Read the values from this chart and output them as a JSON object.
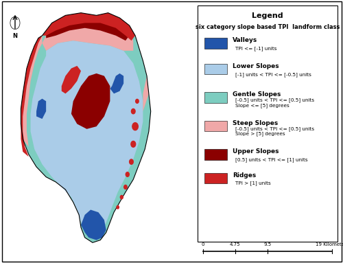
{
  "title": "Legend",
  "subtitle": "six category slope based TPI  landform class",
  "legend_items": [
    {
      "label": "Valleys",
      "sublabel": "TPI <= [-1] units",
      "color": "#2255aa"
    },
    {
      "label": "Lower Slopes",
      "sublabel": "[-1] units < TPI <= [-0.5] units",
      "color": "#aacce8"
    },
    {
      "label": "Gentle Slopes",
      "sublabel": "[-0.5] units < TPI <= [0.5] units\nSlope <= [5] degrees",
      "color": "#7dcdc0"
    },
    {
      "label": "Steep Slopes",
      "sublabel": "[-0.5] units < TPI <= [0.5] units\nSlope > [5] degrees",
      "color": "#f0a8a8"
    },
    {
      "label": "Upper Slopes",
      "sublabel": "[0.5] units < TPI <= [1] units",
      "color": "#8b0000"
    },
    {
      "label": "Ridges",
      "sublabel": "TPI > [1] units",
      "color": "#cc2222"
    }
  ],
  "scale_bar": {
    "labels": [
      "0",
      "4.75",
      "9.5",
      "19 Kilometers"
    ],
    "ticks": [
      0.0,
      0.25,
      0.5,
      1.0
    ]
  },
  "map_colors": {
    "valleys": "#2255aa",
    "lower_slopes": "#aacce8",
    "gentle_slopes": "#7dcdc0",
    "steep_slopes": "#f0a8a8",
    "upper_slopes": "#8b0000",
    "ridges": "#cc2222"
  },
  "background": "#ffffff",
  "border_color": "#000000",
  "figure_width": 5.0,
  "figure_height": 3.83
}
